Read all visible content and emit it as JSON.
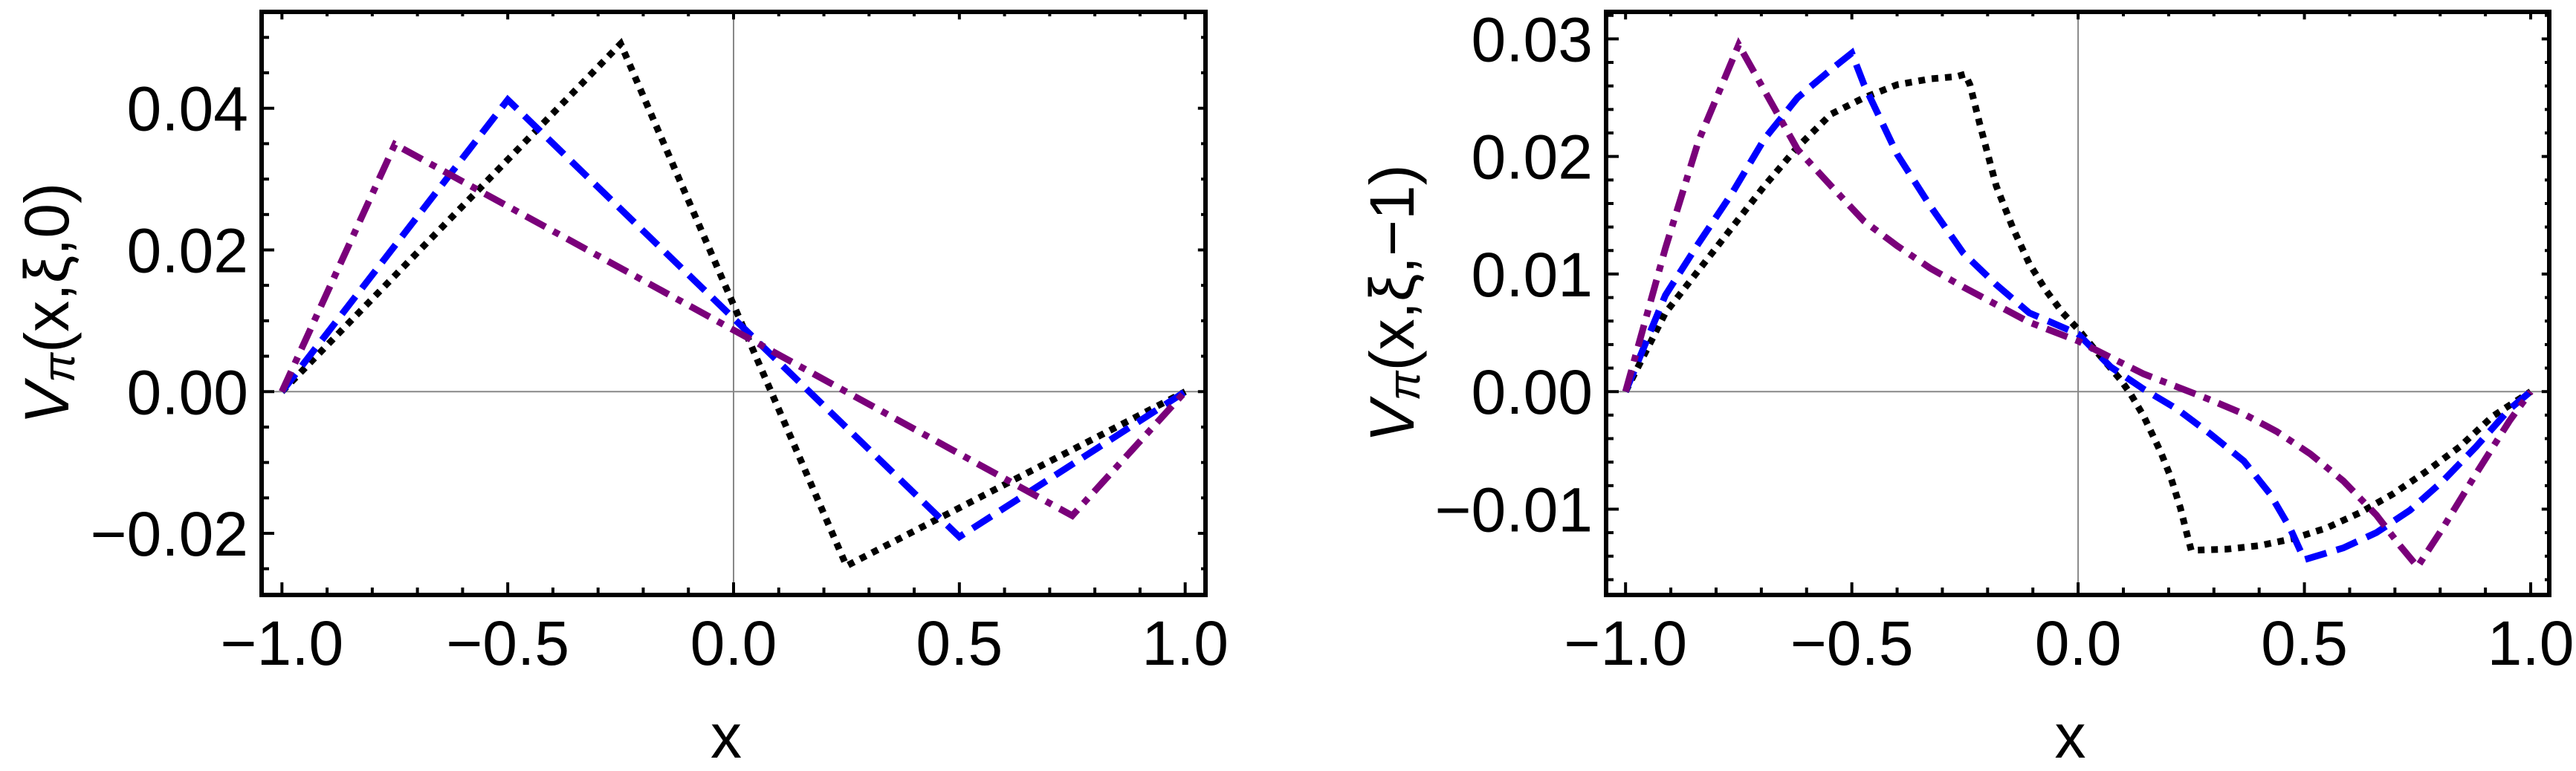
{
  "chart_data": [
    {
      "type": "line",
      "title": "",
      "xlabel": "x",
      "ylabel_parts": {
        "main": "V",
        "sub": "π",
        "args": "(x,ξ,0)"
      },
      "ylabel": "V_π(x,ξ,0)",
      "xlim": [
        -1.045,
        1.045
      ],
      "ylim": [
        -0.0287,
        0.0536
      ],
      "xticks": [
        -1.0,
        -0.5,
        0.0,
        0.5,
        1.0
      ],
      "xtick_labels": [
        "−1.0",
        "−0.5",
        "0.0",
        "0.5",
        "1.0"
      ],
      "xminor_step": 0.1,
      "yticks": [
        -0.02,
        0.0,
        0.02,
        0.04
      ],
      "ytick_labels": [
        "−0.02",
        "0.00",
        "0.02",
        "0.04"
      ],
      "yminor_step": 0.005,
      "zero_lines": true,
      "grid": false,
      "legend": null,
      "series": [
        {
          "name": "black-dotted",
          "color": "#000000",
          "style": "dotted",
          "x": [
            -1.0,
            -0.25,
            0.25,
            1.0
          ],
          "y": [
            0.0,
            0.0491,
            -0.0246,
            0.0
          ]
        },
        {
          "name": "blue-dashed",
          "color": "#0000ff",
          "style": "dashed",
          "x": [
            -1.0,
            -0.5,
            0.5,
            1.0
          ],
          "y": [
            0.0,
            0.0412,
            -0.0205,
            0.0
          ]
        },
        {
          "name": "purple-dashdot",
          "color": "#7a007a",
          "style": "dashdot",
          "x": [
            -1.0,
            -0.75,
            0.75,
            1.0
          ],
          "y": [
            0.0,
            0.0349,
            -0.0175,
            0.0
          ]
        }
      ]
    },
    {
      "type": "line",
      "title": "",
      "xlabel": "x",
      "ylabel_parts": {
        "main": "V",
        "sub": "π",
        "args": "(x,ξ,−1)"
      },
      "ylabel": "V_π(x,ξ,−1)",
      "xlim": [
        -1.043,
        1.041
      ],
      "ylim": [
        -0.0173,
        0.0323
      ],
      "xticks": [
        -1.0,
        -0.5,
        0.0,
        0.5,
        1.0
      ],
      "xtick_labels": [
        "−1.0",
        "−0.5",
        "0.0",
        "0.5",
        "1.0"
      ],
      "xminor_step": 0.1,
      "yticks": [
        -0.01,
        0.0,
        0.01,
        0.02,
        0.03
      ],
      "ytick_labels": [
        "−0.01",
        "0.00",
        "0.01",
        "0.02",
        "0.03"
      ],
      "yminor_step": 0.002,
      "zero_lines": true,
      "grid": false,
      "legend": null,
      "series": [
        {
          "name": "black-dotted",
          "color": "#000000",
          "style": "dotted",
          "x": [
            -1.0,
            -0.912,
            -0.839,
            -0.766,
            -0.693,
            -0.62,
            -0.546,
            -0.473,
            -0.4,
            -0.327,
            -0.268,
            -0.25,
            -0.239,
            -0.217,
            -0.181,
            -0.144,
            -0.108,
            -0.071,
            -0.034,
            0.0,
            0.043,
            0.094,
            0.116,
            0.145,
            0.182,
            0.204,
            0.226,
            0.241,
            0.25,
            0.329,
            0.402,
            0.476,
            0.549,
            0.623,
            0.696,
            0.769,
            0.843,
            0.916,
            1.0
          ],
          "y": [
            0.0,
            0.0067,
            0.0103,
            0.0139,
            0.0175,
            0.0208,
            0.0236,
            0.025,
            0.0261,
            0.0266,
            0.0268,
            0.027,
            0.0261,
            0.0227,
            0.0175,
            0.0139,
            0.0109,
            0.0086,
            0.0067,
            0.0053,
            0.0033,
            0.001,
            -0.0002,
            -0.0021,
            -0.0051,
            -0.0072,
            -0.0099,
            -0.0122,
            -0.0135,
            -0.0134,
            -0.0131,
            -0.0125,
            -0.0116,
            -0.0103,
            -0.0087,
            -0.0068,
            -0.0047,
            -0.0021,
            0.0
          ]
        },
        {
          "name": "blue-dashed",
          "color": "#0000ff",
          "style": "dashed",
          "x": [
            -1.0,
            -0.912,
            -0.839,
            -0.766,
            -0.693,
            -0.62,
            -0.546,
            -0.5,
            -0.473,
            -0.4,
            -0.327,
            -0.254,
            -0.181,
            -0.108,
            0.0,
            0.072,
            0.145,
            0.219,
            0.292,
            0.366,
            0.424,
            0.468,
            0.5,
            0.586,
            0.659,
            0.733,
            0.806,
            0.879,
            0.953,
            1.0
          ],
          "y": [
            0.0,
            0.0082,
            0.0126,
            0.0168,
            0.0215,
            0.025,
            0.0274,
            0.0288,
            0.0261,
            0.0202,
            0.0158,
            0.0118,
            0.0091,
            0.0067,
            0.0049,
            0.0021,
            0.0002,
            -0.0015,
            -0.0036,
            -0.0059,
            -0.0087,
            -0.0116,
            -0.0143,
            -0.0133,
            -0.012,
            -0.0101,
            -0.0076,
            -0.0047,
            -0.0015,
            0.0
          ]
        },
        {
          "name": "purple-dashdot",
          "color": "#7a007a",
          "style": "dashdot",
          "x": [
            -1.0,
            -0.912,
            -0.839,
            -0.75,
            -0.62,
            -0.546,
            -0.473,
            -0.4,
            -0.327,
            -0.254,
            -0.181,
            -0.108,
            0.0,
            0.072,
            0.145,
            0.219,
            0.292,
            0.366,
            0.439,
            0.513,
            0.586,
            0.659,
            0.711,
            0.75,
            0.806,
            0.879,
            0.953,
            1.0
          ],
          "y": [
            0.0,
            0.0122,
            0.0213,
            0.0295,
            0.0206,
            0.0175,
            0.0145,
            0.0124,
            0.0105,
            0.0089,
            0.0074,
            0.0059,
            0.0043,
            0.0029,
            0.0015,
            0.0004,
            -0.0007,
            -0.0019,
            -0.0034,
            -0.0053,
            -0.0076,
            -0.0105,
            -0.0131,
            -0.0149,
            -0.0116,
            -0.007,
            -0.0025,
            0.0
          ]
        }
      ]
    }
  ]
}
